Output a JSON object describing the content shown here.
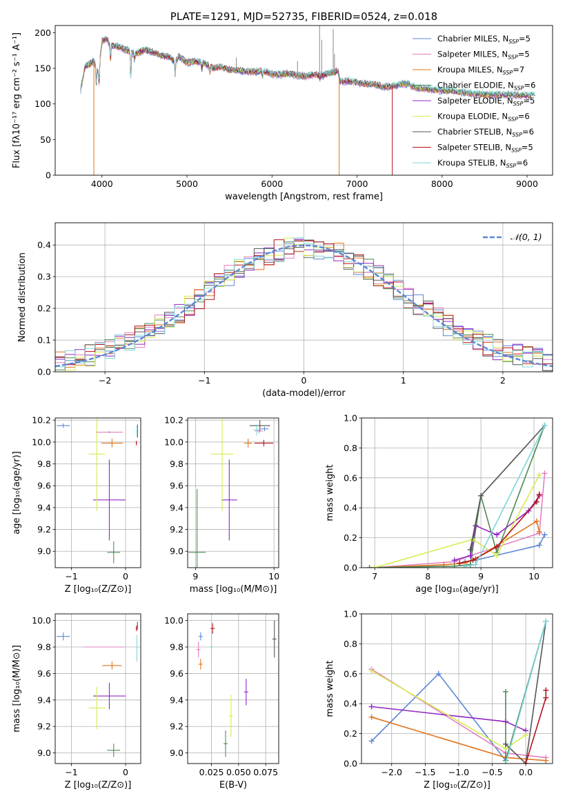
{
  "colors": {
    "chabrier_miles": "#5b86d6",
    "salpeter_miles": "#e37fc0",
    "kroupa_miles": "#e0741c",
    "chabrier_elodie": "#4f8a55",
    "salpeter_elodie": "#9126c0",
    "kroupa_elodie": "#d5ec50",
    "chabrier_stelib": "#555555",
    "salpeter_stelib": "#b3101a",
    "kroupa_stelib": "#7dd6d9",
    "normal_curve": "#5b86d6"
  },
  "models": [
    {
      "key": "chabrier_miles",
      "name": "Chabrier MILES",
      "nssp": "5"
    },
    {
      "key": "salpeter_miles",
      "name": "Salpeter MILES",
      "nssp": "5"
    },
    {
      "key": "kroupa_miles",
      "name": "Kroupa MILES",
      "nssp": "7"
    },
    {
      "key": "chabrier_elodie",
      "name": "Chabrier ELODIE",
      "nssp": "6"
    },
    {
      "key": "salpeter_elodie",
      "name": "Salpeter ELODIE",
      "nssp": "5"
    },
    {
      "key": "kroupa_elodie",
      "name": "Kroupa ELODIE",
      "nssp": "6"
    },
    {
      "key": "chabrier_stelib",
      "name": "Chabrier STELIB",
      "nssp": "6"
    },
    {
      "key": "salpeter_stelib",
      "name": "Salpeter STELIB",
      "nssp": "5"
    },
    {
      "key": "kroupa_stelib",
      "name": "Kroupa STELIB",
      "nssp": "6"
    }
  ],
  "chart_data": [
    {
      "id": "spectrum",
      "type": "line",
      "title": "PLATE=1291, MJD=52735, FIBERID=0524, z=0.018",
      "xlabel": "wavelength [Angstrom, rest frame]",
      "ylabel": "Flux [fλ10⁻¹⁷ erg cm⁻² s⁻¹ A⁻¹]",
      "xlim": [
        3450,
        9300
      ],
      "ylim": [
        0,
        210
      ],
      "xticks": [
        4000,
        5000,
        6000,
        7000,
        8000,
        9000
      ],
      "yticks": [
        0,
        50,
        100,
        150,
        200
      ],
      "legend": "upper right",
      "continuum": {
        "x": [
          3750,
          3800,
          3900,
          3960,
          4000,
          4050,
          4100,
          4200,
          4300,
          4400,
          4500,
          4600,
          4700,
          4800,
          4860,
          4900,
          5000,
          5100,
          5200,
          5300,
          5400,
          5500,
          5600,
          5700,
          5800,
          5900,
          6000,
          6100,
          6200,
          6300,
          6400,
          6500,
          6600,
          6700,
          6780,
          6800,
          6900,
          7000,
          7100,
          7200,
          7300,
          7400,
          7500,
          7600,
          7700,
          7800,
          7900,
          8000,
          8200,
          8400,
          8600,
          8800,
          9000,
          9100
        ],
        "y": [
          120,
          152,
          160,
          145,
          188,
          192,
          182,
          180,
          175,
          170,
          176,
          173,
          168,
          166,
          158,
          167,
          158,
          160,
          158,
          150,
          152,
          148,
          147,
          146,
          145,
          146,
          142,
          141,
          143,
          140,
          139,
          141,
          140,
          144,
          146,
          131,
          132,
          130,
          128,
          128,
          124,
          124,
          128,
          128,
          122,
          122,
          120,
          119,
          117,
          114,
          113,
          113,
          112,
          112
        ]
      }
    },
    {
      "id": "residuals",
      "type": "bar",
      "xlabel": "(data-model)/error",
      "ylabel": "Normed distribution",
      "xlim": [
        -2.5,
        2.5
      ],
      "ylim": [
        0,
        0.47
      ],
      "xticks": [
        -2,
        -1,
        0,
        1,
        2
      ],
      "yticks": [
        0.0,
        0.1,
        0.2,
        0.3,
        0.4
      ],
      "legend": "upper right",
      "curve_label": "𝒩(0, 1)",
      "bin_edges": [
        -2.5,
        -2.4,
        -2.3,
        -2.2,
        -2.1,
        -2.0,
        -1.9,
        -1.8,
        -1.7,
        -1.6,
        -1.5,
        -1.4,
        -1.3,
        -1.2,
        -1.1,
        -1.0,
        -0.9,
        -0.8,
        -0.7,
        -0.6,
        -0.5,
        -0.4,
        -0.3,
        -0.2,
        -0.1,
        0.0,
        0.1,
        0.2,
        0.3,
        0.4,
        0.5,
        0.6,
        0.7,
        0.8,
        0.9,
        1.0,
        1.1,
        1.2,
        1.3,
        1.4,
        1.5,
        1.6,
        1.7,
        1.8,
        1.9,
        2.0,
        2.1,
        2.2,
        2.3,
        2.4,
        2.5
      ]
    },
    {
      "id": "age_vs_z",
      "type": "scatter",
      "xlabel": "Z [log₁₀(Z/Z⊙)]",
      "ylabel": "age  [log₁₀(age/yr)]",
      "xlim": [
        -1.3,
        0.28
      ],
      "ylim": [
        8.85,
        10.22
      ],
      "xticks": [
        -1,
        0
      ],
      "yticks": [
        9.0,
        9.2,
        9.4,
        9.6,
        9.8,
        10.0,
        10.2
      ],
      "points": [
        {
          "m": "chabrier_miles",
          "x": -1.15,
          "y": 10.15,
          "xe": 0.12,
          "ye": 0.02
        },
        {
          "m": "salpeter_miles",
          "x": -0.3,
          "y": 10.09,
          "xe": 0.25,
          "ye": 0.01
        },
        {
          "m": "kroupa_miles",
          "x": -0.25,
          "y": 9.99,
          "xe": 0.2,
          "ye": 0.04
        },
        {
          "m": "chabrier_elodie",
          "x": -0.22,
          "y": 8.99,
          "xe": 0.12,
          "ye": 0.1
        },
        {
          "m": "salpeter_elodie",
          "x": -0.3,
          "y": 9.47,
          "xe": 0.3,
          "ye": 0.37
        },
        {
          "m": "kroupa_elodie",
          "x": -0.53,
          "y": 9.89,
          "xe": 0.15,
          "ye": 0.52
        },
        {
          "m": "chabrier_stelib",
          "x": 0.22,
          "y": 10.1,
          "xe": 0.01,
          "ye": 0.06
        },
        {
          "m": "salpeter_stelib",
          "x": 0.2,
          "y": 9.99,
          "xe": 0.01,
          "ye": 0.02
        },
        {
          "m": "kroupa_stelib",
          "x": 0.21,
          "y": 10.1,
          "xe": 0.01,
          "ye": 0.05
        }
      ]
    },
    {
      "id": "age_vs_mass",
      "type": "scatter",
      "xlabel": "mass [log₁₀(M/M⊙)]",
      "ylabel": "",
      "xlim": [
        8.9,
        10.06
      ],
      "ylim": [
        8.85,
        10.22
      ],
      "xticks": [
        9,
        10
      ],
      "yticks": [
        9.0,
        9.2,
        9.4,
        9.6,
        9.8,
        10.0,
        10.2
      ],
      "points": [
        {
          "m": "chabrier_miles",
          "x": 9.88,
          "y": 10.12,
          "xe": 0.05,
          "ye": 0.02
        },
        {
          "m": "salpeter_miles",
          "x": 9.81,
          "y": 10.1,
          "xe": 0.05,
          "ye": 0.02
        },
        {
          "m": "kroupa_miles",
          "x": 9.67,
          "y": 9.99,
          "xe": 0.05,
          "ye": 0.04
        },
        {
          "m": "chabrier_elodie",
          "x": 9.02,
          "y": 8.99,
          "xe": 0.11,
          "ye": 0.58
        },
        {
          "m": "salpeter_elodie",
          "x": 9.43,
          "y": 9.47,
          "xe": 0.1,
          "ye": 0.37
        },
        {
          "m": "kroupa_elodie",
          "x": 9.34,
          "y": 9.89,
          "xe": 0.14,
          "ye": 0.52
        },
        {
          "m": "chabrier_stelib",
          "x": 9.82,
          "y": 10.15,
          "xe": 0.13,
          "ye": 0.05
        },
        {
          "m": "salpeter_stelib",
          "x": 9.87,
          "y": 9.99,
          "xe": 0.12,
          "ye": 0.03
        },
        {
          "m": "kroupa_stelib",
          "x": 9.78,
          "y": 10.11,
          "xe": 0.04,
          "ye": 0.05
        }
      ]
    },
    {
      "id": "weight_vs_age",
      "type": "line",
      "xlabel": "age  [log₁₀(age/yr)]",
      "ylabel": "mass weight",
      "xlim": [
        6.75,
        10.35
      ],
      "ylim": [
        0,
        1
      ],
      "xticks": [
        7,
        8,
        9,
        10
      ],
      "yticks": [
        0.0,
        0.2,
        0.4,
        0.6,
        0.8,
        1.0
      ],
      "series": [
        {
          "m": "chabrier_miles",
          "x": [
            8.7,
            8.9,
            10.1,
            10.2
          ],
          "y": [
            0.04,
            0.05,
            0.15,
            0.22
          ]
        },
        {
          "m": "salpeter_miles",
          "x": [
            7.0,
            8.5,
            8.8,
            10.1,
            10.2
          ],
          "y": [
            0.0,
            0.04,
            0.08,
            0.23,
            0.63
          ]
        },
        {
          "m": "kroupa_miles",
          "x": [
            7.0,
            8.3,
            8.7,
            8.9,
            10.05,
            10.1
          ],
          "y": [
            0.0,
            0.02,
            0.03,
            0.06,
            0.31,
            0.24
          ]
        },
        {
          "m": "chabrier_elodie",
          "x": [
            6.9,
            8.5,
            8.8,
            9.0,
            9.3,
            10.2
          ],
          "y": [
            0.0,
            0.01,
            0.02,
            0.48,
            0.1,
            0.95
          ]
        },
        {
          "m": "salpeter_elodie",
          "x": [
            8.5,
            8.8,
            8.9,
            9.3,
            9.9,
            10.1
          ],
          "y": [
            0.05,
            0.08,
            0.28,
            0.22,
            0.38,
            0.48
          ]
        },
        {
          "m": "kroupa_elodie",
          "x": [
            7.0,
            8.85,
            9.3,
            10.1
          ],
          "y": [
            0.0,
            0.19,
            0.08,
            0.62
          ]
        },
        {
          "m": "chabrier_stelib",
          "x": [
            8.8,
            9.0,
            10.2
          ],
          "y": [
            0.12,
            0.48,
            0.95
          ]
        },
        {
          "m": "salpeter_stelib",
          "x": [
            8.6,
            8.85,
            9.3,
            10.05,
            10.1
          ],
          "y": [
            0.03,
            0.05,
            0.14,
            0.44,
            0.49
          ]
        },
        {
          "m": "kroupa_stelib",
          "x": [
            8.7,
            8.9,
            10.2
          ],
          "y": [
            0.01,
            0.02,
            0.95
          ]
        }
      ]
    },
    {
      "id": "mass_vs_z",
      "type": "scatter",
      "xlabel": "Z [log₁₀(Z/Z⊙)]",
      "ylabel": "mass [log₁₀(M/M⊙)]",
      "xlim": [
        -1.3,
        0.28
      ],
      "ylim": [
        8.92,
        10.05
      ],
      "xticks": [
        -1,
        0
      ],
      "yticks": [
        9.0,
        9.2,
        9.4,
        9.6,
        9.8,
        10.0
      ],
      "points": [
        {
          "m": "chabrier_miles",
          "x": -1.15,
          "y": 9.88,
          "xe": 0.12,
          "ye": 0.03
        },
        {
          "m": "salpeter_miles",
          "x": -0.4,
          "y": 9.8,
          "xe": 0.38,
          "ye": 0.0
        },
        {
          "m": "kroupa_miles",
          "x": -0.25,
          "y": 9.66,
          "xe": 0.18,
          "ye": 0.03
        },
        {
          "m": "chabrier_elodie",
          "x": -0.22,
          "y": 9.02,
          "xe": 0.12,
          "ye": 0.05
        },
        {
          "m": "salpeter_elodie",
          "x": -0.3,
          "y": 9.43,
          "xe": 0.3,
          "ye": 0.1
        },
        {
          "m": "kroupa_elodie",
          "x": -0.53,
          "y": 9.34,
          "xe": 0.15,
          "ye": 0.16
        },
        {
          "m": "chabrier_stelib",
          "x": 0.22,
          "y": 9.96,
          "xe": 0.01,
          "ye": 0.03
        },
        {
          "m": "salpeter_stelib",
          "x": 0.2,
          "y": 9.94,
          "xe": 0.01,
          "ye": 0.02
        },
        {
          "m": "kroupa_stelib",
          "x": 0.21,
          "y": 9.79,
          "xe": 0.01,
          "ye": 0.1
        }
      ]
    },
    {
      "id": "mass_vs_ebv",
      "type": "scatter",
      "xlabel": "E(B-V)",
      "ylabel": "",
      "xlim": [
        0.003,
        0.087
      ],
      "ylim": [
        8.92,
        10.05
      ],
      "xticks": [
        0.025,
        0.05,
        0.075
      ],
      "xticklabels": [
        "0.025",
        "0.050",
        "0.075"
      ],
      "yticks": [
        9.0,
        9.2,
        9.4,
        9.6,
        9.8,
        10.0
      ],
      "points": [
        {
          "m": "chabrier_miles",
          "x": 0.015,
          "y": 9.88,
          "xe": 0.0,
          "ye": 0.03
        },
        {
          "m": "salpeter_miles",
          "x": 0.013,
          "y": 9.78,
          "xe": 0.0,
          "ye": 0.06
        },
        {
          "m": "kroupa_miles",
          "x": 0.015,
          "y": 9.67,
          "xe": 0.0,
          "ye": 0.04
        },
        {
          "m": "chabrier_elodie",
          "x": 0.038,
          "y": 9.07,
          "xe": 0.0,
          "ye": 0.1
        },
        {
          "m": "salpeter_elodie",
          "x": 0.057,
          "y": 9.46,
          "xe": 0.0,
          "ye": 0.1
        },
        {
          "m": "kroupa_elodie",
          "x": 0.043,
          "y": 9.28,
          "xe": 0.0,
          "ye": 0.16
        },
        {
          "m": "chabrier_stelib",
          "x": 0.083,
          "y": 9.86,
          "xe": 0.0,
          "ye": 0.14
        },
        {
          "m": "salpeter_stelib",
          "x": 0.026,
          "y": 9.94,
          "xe": 0.0,
          "ye": 0.04
        },
        {
          "m": "kroupa_stelib",
          "x": 0.025,
          "y": 9.8,
          "xe": 0.0,
          "ye": 0.12
        }
      ]
    },
    {
      "id": "weight_vs_z",
      "type": "line",
      "xlabel": "Z [log₁₀(Z/Z⊙)]",
      "ylabel": "mass weight",
      "xlim": [
        -2.45,
        0.4
      ],
      "ylim": [
        0,
        1
      ],
      "xticks": [
        -2.0,
        -1.5,
        -1.0,
        -0.5,
        0.0
      ],
      "yticks": [
        0.0,
        0.2,
        0.4,
        0.6,
        0.8,
        1.0
      ],
      "series": [
        {
          "m": "chabrier_miles",
          "x": [
            -2.3,
            -1.3,
            -0.3,
            0.3
          ],
          "y": [
            0.15,
            0.6,
            0.02,
            0.95
          ]
        },
        {
          "m": "salpeter_miles",
          "x": [
            -2.3,
            -0.3,
            0.3
          ],
          "y": [
            0.63,
            0.07,
            0.04
          ]
        },
        {
          "m": "kroupa_miles",
          "x": [
            -2.3,
            -0.3,
            0.3
          ],
          "y": [
            0.31,
            0.04,
            0.02
          ]
        },
        {
          "m": "chabrier_elodie",
          "x": [
            -0.3,
            -0.3,
            0.3
          ],
          "y": [
            0.48,
            0.02,
            0.95
          ]
        },
        {
          "m": "salpeter_elodie",
          "x": [
            -2.3,
            -0.3,
            0.0
          ],
          "y": [
            0.38,
            0.28,
            0.22
          ]
        },
        {
          "m": "kroupa_elodie",
          "x": [
            -2.3,
            -0.3,
            0.0
          ],
          "y": [
            0.62,
            0.1,
            0.19
          ]
        },
        {
          "m": "chabrier_stelib",
          "x": [
            -0.3,
            0.0,
            0.3
          ],
          "y": [
            0.13,
            0.0,
            0.95
          ]
        },
        {
          "m": "salpeter_stelib",
          "x": [
            0.0,
            0.3,
            0.3
          ],
          "y": [
            0.0,
            0.44,
            0.49
          ]
        },
        {
          "m": "kroupa_stelib",
          "x": [
            -0.3,
            0.3
          ],
          "y": [
            0.0,
            0.95
          ]
        }
      ]
    }
  ]
}
